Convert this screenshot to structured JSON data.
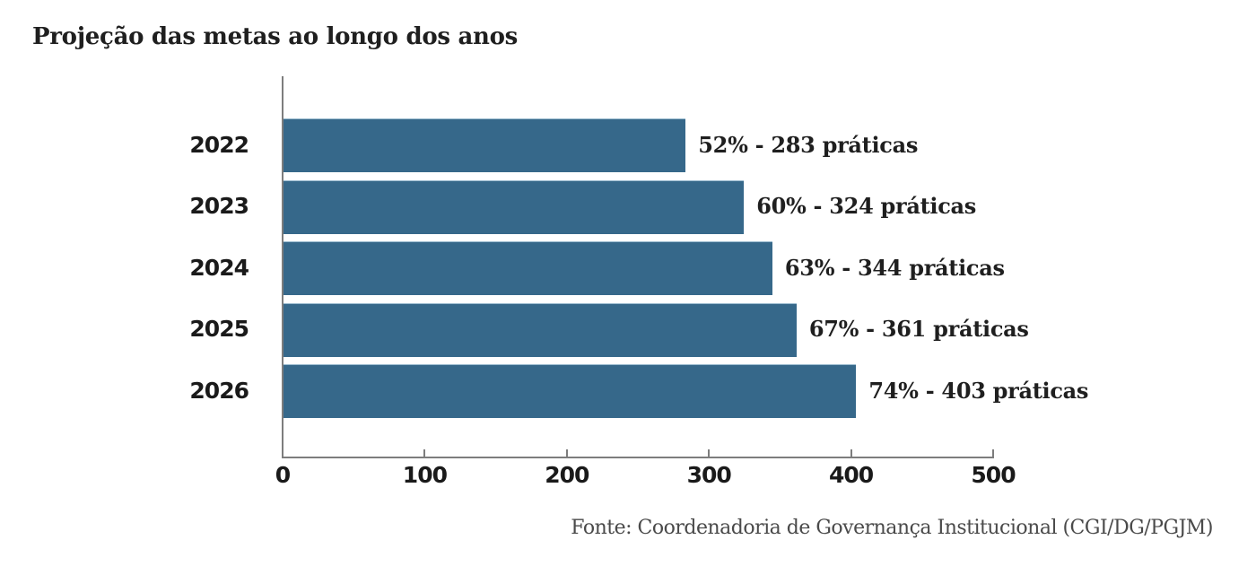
{
  "title": "Projeção das metas ao longo dos anos",
  "source_note": "Fonte: Coordenadoria de Governança Institucional (CGI/DG/PGJM)",
  "colors": {
    "bar": "#36688A",
    "axis": "#7D7D7D",
    "title_text": "#1F1F1F",
    "label_text": "#1F1F1F",
    "source_text": "#4A4A4A"
  },
  "chart_data": {
    "type": "bar",
    "orientation": "horizontal",
    "title": "Projeção das metas ao longo dos anos",
    "xlabel": "",
    "ylabel": "",
    "categories": [
      "2022",
      "2023",
      "2024",
      "2025",
      "2026"
    ],
    "values": [
      283,
      324,
      344,
      361,
      403
    ],
    "percentages": [
      52,
      60,
      63,
      67,
      74
    ],
    "data_labels": [
      "52% - 283 práticas",
      "60% - 324 práticas",
      "63% - 344 práticas",
      "67% - 361 práticas",
      "74% - 403 práticas"
    ],
    "xlim": [
      0,
      500
    ],
    "xticks": [
      0,
      100,
      200,
      300,
      400,
      500
    ],
    "grid": false,
    "legend": false,
    "bar_color": "#36688A",
    "source": "Fonte: Coordenadoria de Governança Institucional (CGI/DG/PGJM)"
  }
}
